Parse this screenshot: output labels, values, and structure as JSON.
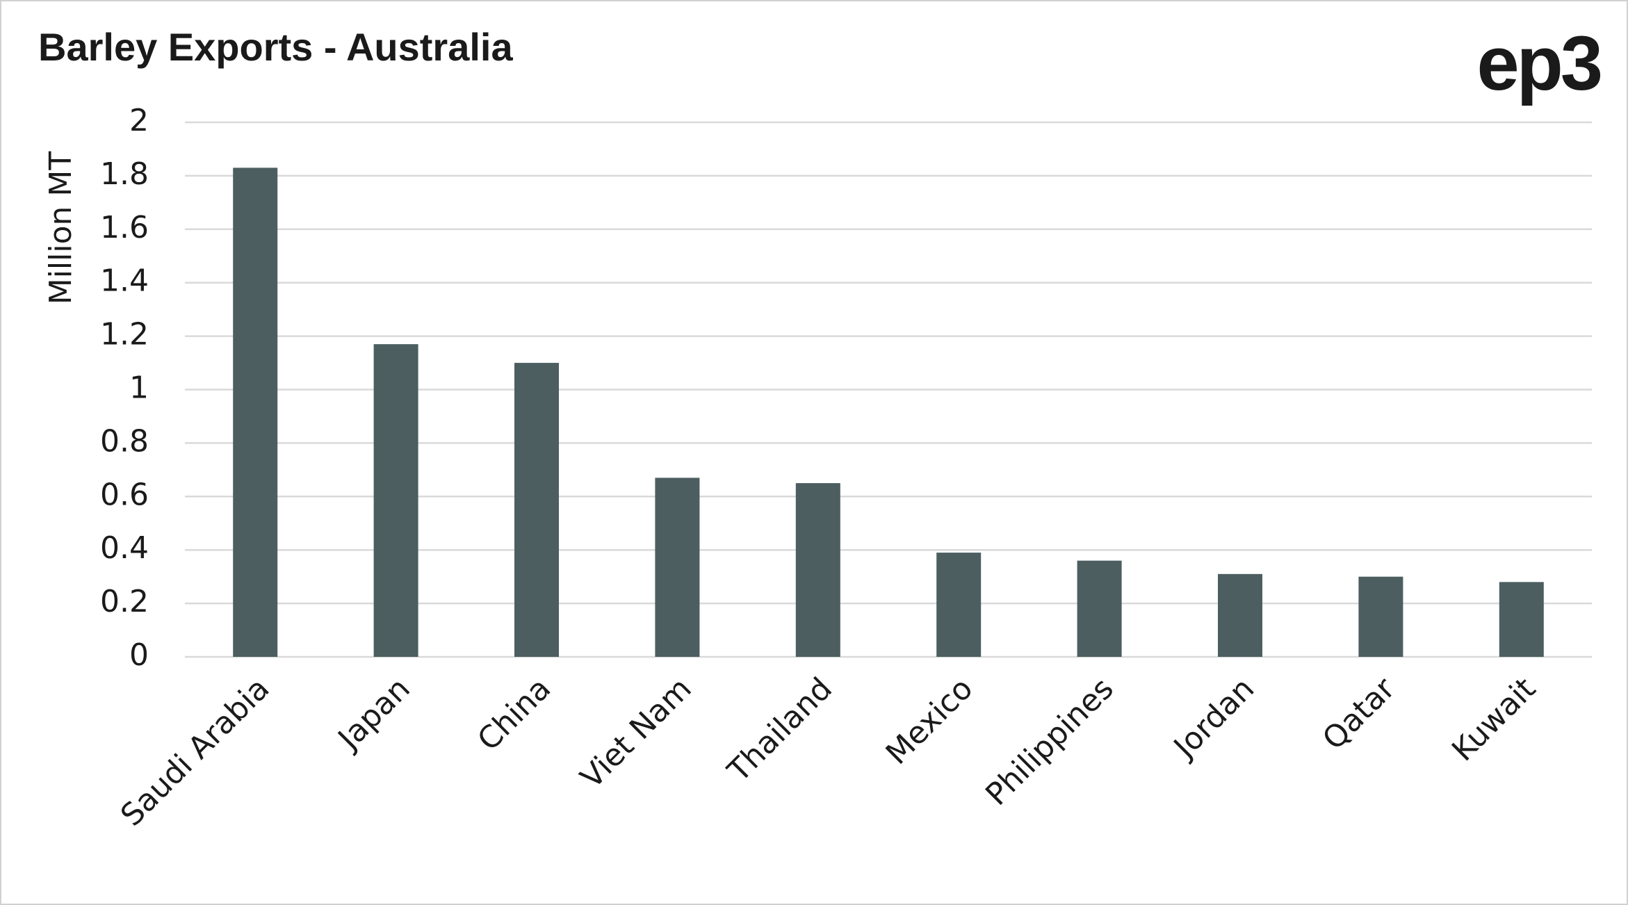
{
  "chart_data": {
    "type": "bar",
    "title": "Barley Exports - Australia",
    "logo": "ep3",
    "y_label": "Million MT",
    "categories": [
      "Saudi Arabia",
      "Japan",
      "China",
      "Viet Nam",
      "Thailand",
      "Mexico",
      "Philippines",
      "Jordan",
      "Qatar",
      "Kuwait"
    ],
    "values": [
      1.83,
      1.17,
      1.1,
      0.67,
      0.65,
      0.39,
      0.36,
      0.31,
      0.3,
      0.28
    ],
    "color": "#4d5e60",
    "ylim": [
      0,
      2
    ],
    "yticks": [
      0,
      0.2,
      0.4,
      0.6,
      0.8,
      1,
      1.2,
      1.4,
      1.6,
      1.8,
      2
    ],
    "grid": true
  }
}
